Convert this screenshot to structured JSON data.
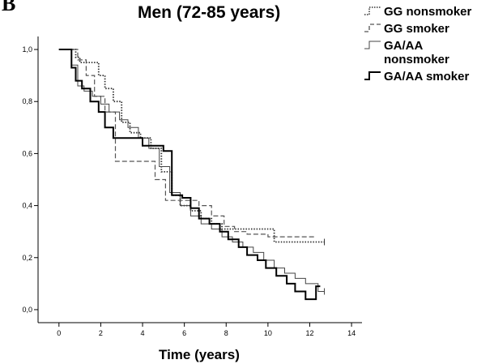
{
  "panel_letter": "B",
  "chart_data": {
    "type": "line",
    "title": "Men (72-85 years)",
    "xlabel": "Time (years)",
    "ylabel": "",
    "xlim": [
      -1,
      14.5
    ],
    "ylim": [
      -0.05,
      1.05
    ],
    "xticks": [
      0,
      2,
      4,
      6,
      8,
      10,
      12,
      14
    ],
    "xtick_labels": [
      "0",
      "2",
      "4",
      "6",
      "8",
      "10",
      "12",
      "14"
    ],
    "yticks": [
      0.0,
      0.2,
      0.4,
      0.6,
      0.8,
      1.0
    ],
    "ytick_labels": [
      "0,0",
      "0,2",
      "0,4",
      "0,6",
      "0,8",
      "1,0"
    ],
    "grid": false,
    "legend_position": "top-right",
    "step": true,
    "series": [
      {
        "name": "GG nonsmoker",
        "dash": "dotted",
        "x": [
          0,
          0.8,
          1.0,
          1.4,
          1.9,
          2.2,
          2.6,
          3.0,
          3.4,
          3.9,
          4.4,
          4.9,
          5.4,
          5.8,
          6.3,
          6.8,
          7.3,
          7.8,
          8.3,
          10.3,
          12.7
        ],
        "y": [
          1.0,
          0.97,
          0.95,
          0.95,
          0.9,
          0.85,
          0.8,
          0.72,
          0.68,
          0.66,
          0.62,
          0.53,
          0.44,
          0.4,
          0.38,
          0.35,
          0.33,
          0.31,
          0.31,
          0.26,
          0.26
        ],
        "censor_end": true
      },
      {
        "name": "GG smoker",
        "dash": "dashed",
        "x": [
          0,
          0.9,
          1.3,
          1.7,
          2.2,
          2.7,
          3.1,
          3.6,
          4.1,
          4.6,
          5.1,
          5.5,
          6.1,
          6.7,
          7.3,
          7.9,
          8.4,
          9.0,
          10.0,
          12.3
        ],
        "y": [
          1.0,
          0.96,
          0.9,
          0.82,
          0.76,
          0.57,
          0.57,
          0.57,
          0.57,
          0.5,
          0.42,
          0.42,
          0.42,
          0.4,
          0.36,
          0.32,
          0.3,
          0.29,
          0.28,
          0.28
        ],
        "censor_end": false
      },
      {
        "name": "GA/AA nonsmoker",
        "dash": "solid-thin",
        "x": [
          0,
          0.6,
          0.9,
          1.2,
          1.6,
          2.0,
          2.4,
          2.9,
          3.3,
          3.8,
          4.3,
          4.8,
          5.3,
          5.8,
          6.3,
          6.8,
          7.3,
          7.8,
          8.3,
          8.8,
          9.3,
          9.8,
          10.3,
          10.8,
          11.3,
          11.8,
          12.4,
          12.7
        ],
        "y": [
          1.0,
          0.94,
          0.86,
          0.84,
          0.82,
          0.79,
          0.76,
          0.73,
          0.7,
          0.66,
          0.62,
          0.55,
          0.45,
          0.4,
          0.36,
          0.33,
          0.31,
          0.28,
          0.26,
          0.24,
          0.22,
          0.19,
          0.16,
          0.14,
          0.12,
          0.1,
          0.07,
          0.07
        ],
        "censor_end": true
      },
      {
        "name": "GA/AA smoker",
        "dash": "solid-bold",
        "x": [
          0,
          0.6,
          0.8,
          1.1,
          1.5,
          1.9,
          2.2,
          2.6,
          3.1,
          3.6,
          4.0,
          4.5,
          5.0,
          5.4,
          5.9,
          6.3,
          6.7,
          7.2,
          7.7,
          8.1,
          8.6,
          9.0,
          9.5,
          9.9,
          10.4,
          10.9,
          11.3,
          11.8,
          12.3,
          12.5
        ],
        "y": [
          1.0,
          0.93,
          0.88,
          0.85,
          0.8,
          0.76,
          0.7,
          0.66,
          0.66,
          0.66,
          0.63,
          0.63,
          0.61,
          0.44,
          0.43,
          0.39,
          0.35,
          0.33,
          0.3,
          0.27,
          0.24,
          0.21,
          0.19,
          0.16,
          0.13,
          0.1,
          0.07,
          0.04,
          0.09,
          0.09
        ],
        "censor_end": false
      }
    ]
  }
}
